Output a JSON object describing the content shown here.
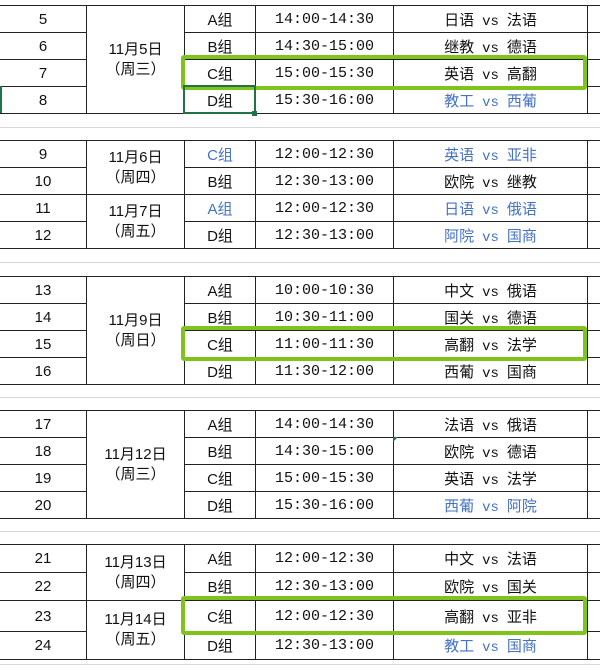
{
  "colors": {
    "highlight": "#7fc31c",
    "blue_text": "#4472c4",
    "selection": "#217346"
  },
  "selected_cell": {
    "row_no": "8",
    "column": "group"
  },
  "highlighted_rows": [
    "7",
    "15",
    "23"
  ],
  "blocks": [
    {
      "dates": [
        {
          "date": "11月5日",
          "weekday": "（周三）",
          "span": 4
        }
      ],
      "rows": [
        {
          "no": "5",
          "group": "A组",
          "time": "14:00-14:30",
          "team1": "日语",
          "vs": "vs",
          "team2": "法语"
        },
        {
          "no": "6",
          "group": "B组",
          "time": "14:30-15:00",
          "team1": "继教",
          "vs": "vs",
          "team2": "德语"
        },
        {
          "no": "7",
          "group": "C组",
          "time": "15:00-15:30",
          "team1": "英语",
          "vs": "vs",
          "team2": "高翻"
        },
        {
          "no": "8",
          "group": "D组",
          "time": "15:30-16:00",
          "team1": "教工",
          "vs": "vs",
          "team2": "西葡",
          "match_blue": true
        }
      ]
    },
    {
      "dates": [
        {
          "date": "11月6日",
          "weekday": "（周四）",
          "span": 2
        },
        {
          "date": "11月7日",
          "weekday": "（周五）",
          "span": 2
        }
      ],
      "rows": [
        {
          "no": "9",
          "group": "C组",
          "time": "12:00-12:30",
          "team1": "英语",
          "vs": "vs",
          "team2": "亚非",
          "group_blue": true,
          "match_blue": true
        },
        {
          "no": "10",
          "group": "B组",
          "time": "12:30-13:00",
          "team1": "欧院",
          "vs": "vs",
          "team2": "继教"
        },
        {
          "no": "11",
          "group": "A组",
          "time": "12:00-12:30",
          "team1": "日语",
          "vs": "vs",
          "team2": "俄语",
          "group_blue": true,
          "match_blue": true
        },
        {
          "no": "12",
          "group": "D组",
          "time": "12:30-13:00",
          "team1": "阿院",
          "vs": "vs",
          "team2": "国商",
          "match_blue": true
        }
      ]
    },
    {
      "dates": [
        {
          "date": "11月9日",
          "weekday": "（周日）",
          "span": 4
        }
      ],
      "rows": [
        {
          "no": "13",
          "group": "A组",
          "time": "10:00-10:30",
          "team1": "中文",
          "vs": "vs",
          "team2": "俄语"
        },
        {
          "no": "14",
          "group": "B组",
          "time": "10:30-11:00",
          "team1": "国关",
          "vs": "vs",
          "team2": "德语"
        },
        {
          "no": "15",
          "group": "C组",
          "time": "11:00-11:30",
          "team1": "高翻",
          "vs": "vs",
          "team2": "法学"
        },
        {
          "no": "16",
          "group": "D组",
          "time": "11:30-12:00",
          "team1": "西葡",
          "vs": "vs",
          "team2": "国商"
        }
      ]
    },
    {
      "dates": [
        {
          "date": "11月12日",
          "weekday": "（周三）",
          "span": 4
        }
      ],
      "rows": [
        {
          "no": "17",
          "group": "A组",
          "time": "14:00-14:30",
          "team1": "法语",
          "vs": "vs",
          "team2": "俄语"
        },
        {
          "no": "18",
          "group": "B组",
          "time": "14:30-15:00",
          "team1": "欧院",
          "vs": "vs",
          "team2": "德语"
        },
        {
          "no": "19",
          "group": "C组",
          "time": "15:00-15:30",
          "team1": "英语",
          "vs": "vs",
          "team2": "法学"
        },
        {
          "no": "20",
          "group": "D组",
          "time": "15:30-16:00",
          "team1": "西葡",
          "vs": "vs",
          "team2": "阿院",
          "match_blue": true
        }
      ]
    },
    {
      "dates": [
        {
          "date": "11月13日",
          "weekday": "（周四）",
          "span": 2
        },
        {
          "date": "11月14日",
          "weekday": "（周五）",
          "span": 2
        }
      ],
      "rows": [
        {
          "no": "21",
          "group": "A组",
          "time": "12:00-12:30",
          "team1": "中文",
          "vs": "vs",
          "team2": "法语"
        },
        {
          "no": "22",
          "group": "B组",
          "time": "12:30-13:00",
          "team1": "欧院",
          "vs": "vs",
          "team2": "国关"
        },
        {
          "no": "23",
          "group": "C组",
          "time": "12:00-12:30",
          "team1": "高翻",
          "vs": "vs",
          "team2": "亚非"
        },
        {
          "no": "24",
          "group": "D组",
          "time": "12:30-13:00",
          "team1": "教工",
          "vs": "vs",
          "team2": "国商",
          "match_blue": true
        }
      ]
    }
  ]
}
